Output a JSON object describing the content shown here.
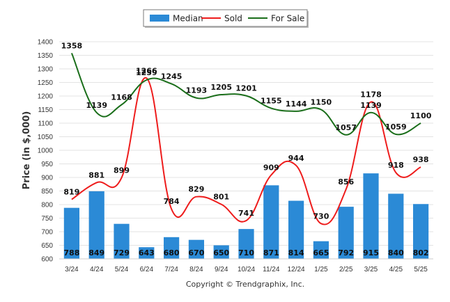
{
  "chart_data": {
    "type": "bar",
    "categories": [
      "3/24",
      "4/24",
      "5/24",
      "6/24",
      "7/24",
      "8/24",
      "9/24",
      "10/24",
      "11/24",
      "12/24",
      "1/25",
      "2/25",
      "3/25",
      "4/25",
      "5/25"
    ],
    "series": [
      {
        "name": "Median",
        "type": "bar",
        "color": "#2b8ad6",
        "values": [
          788,
          849,
          729,
          643,
          680,
          670,
          650,
          710,
          871,
          814,
          665,
          792,
          915,
          840,
          802
        ]
      },
      {
        "name": "Sold",
        "type": "line",
        "color": "#ee1c1c",
        "values": [
          819,
          881,
          899,
          1266,
          784,
          829,
          801,
          741,
          909,
          944,
          730,
          856,
          1178,
          918,
          938
        ]
      },
      {
        "name": "For Sale",
        "type": "line",
        "color": "#1a6e1a",
        "values": [
          1358,
          1139,
          1168,
          1259,
          1245,
          1193,
          1205,
          1201,
          1155,
          1144,
          1150,
          1057,
          1139,
          1059,
          1100
        ]
      }
    ],
    "ylabel": "Price (in $,000)",
    "xlabel": "",
    "ylim": [
      600,
      1400
    ],
    "yticks": [
      600,
      650,
      700,
      750,
      800,
      850,
      900,
      950,
      1000,
      1050,
      1100,
      1150,
      1200,
      1250,
      1300,
      1350,
      1400
    ],
    "grid": true,
    "legend_position": "top-center"
  },
  "credit": "Copyright © Trendgraphix, Inc."
}
